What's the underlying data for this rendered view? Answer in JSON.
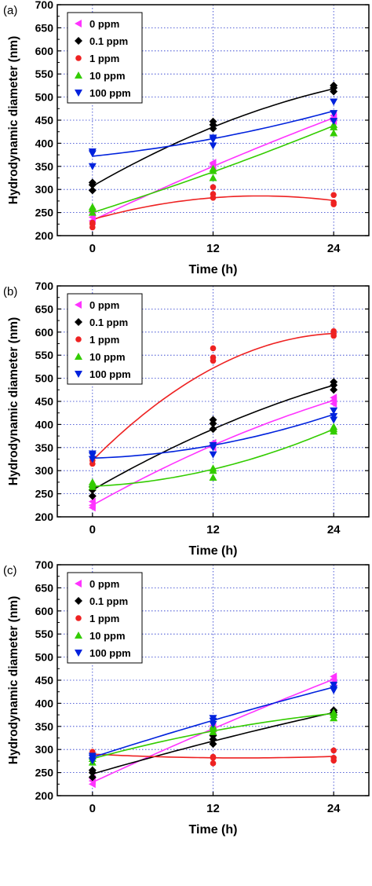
{
  "series_styles": [
    {
      "name": "0 ppm",
      "color": "#ff33ff",
      "marker": "triangle-left"
    },
    {
      "name": "0.1 ppm",
      "color": "#000000",
      "marker": "diamond"
    },
    {
      "name": "1 ppm",
      "color": "#ee2222",
      "marker": "circle"
    },
    {
      "name": "10 ppm",
      "color": "#33cc00",
      "marker": "triangle-up"
    },
    {
      "name": "100 ppm",
      "color": "#0022dd",
      "marker": "triangle-down"
    }
  ],
  "chart_data": [
    {
      "type": "scatter",
      "panel_label": "(a)",
      "xlabel": "Time (h)",
      "ylabel": "Hydrodynamic diameter (nm)",
      "x_ticks": [
        0,
        12,
        24
      ],
      "xlim": [
        -3.5,
        27.5
      ],
      "ylim": [
        200,
        700
      ],
      "y_ticks": [
        200,
        250,
        300,
        350,
        400,
        450,
        500,
        550,
        600,
        650,
        700
      ],
      "grid": true,
      "legend_position": "top-left",
      "series": [
        {
          "name": "0 ppm",
          "points": [
            [
              0,
              232
            ],
            [
              0,
              240
            ],
            [
              0,
              250
            ],
            [
              12,
              350
            ],
            [
              12,
              355
            ],
            [
              12,
              358
            ],
            [
              24,
              448
            ],
            [
              24,
              455
            ],
            [
              24,
              460
            ]
          ],
          "fit": [
            [
              0,
              233
            ],
            [
              12,
              350
            ],
            [
              24,
              455
            ]
          ]
        },
        {
          "name": "0.1 ppm",
          "points": [
            [
              0,
              298
            ],
            [
              0,
              310
            ],
            [
              0,
              315
            ],
            [
              12,
              432
            ],
            [
              12,
              440
            ],
            [
              12,
              447
            ],
            [
              24,
              512
            ],
            [
              24,
              520
            ],
            [
              24,
              525
            ]
          ],
          "fit": [
            [
              0,
              307
            ],
            [
              12,
              435
            ],
            [
              24,
              518
            ]
          ]
        },
        {
          "name": "1 ppm",
          "points": [
            [
              0,
              218
            ],
            [
              0,
              225
            ],
            [
              0,
              228
            ],
            [
              12,
              282
            ],
            [
              12,
              290
            ],
            [
              12,
              305
            ],
            [
              24,
              268
            ],
            [
              24,
              272
            ],
            [
              24,
              288
            ]
          ],
          "fit": [
            [
              0,
              235
            ],
            [
              12,
              282
            ],
            [
              24,
              276
            ]
          ]
        },
        {
          "name": "10 ppm",
          "points": [
            [
              0,
              250
            ],
            [
              0,
              258
            ],
            [
              0,
              262
            ],
            [
              12,
              325
            ],
            [
              12,
              340
            ],
            [
              12,
              345
            ],
            [
              24,
              422
            ],
            [
              24,
              435
            ],
            [
              24,
              440
            ]
          ],
          "fit": [
            [
              0,
              250
            ],
            [
              12,
              338
            ],
            [
              24,
              438
            ]
          ]
        },
        {
          "name": "100 ppm",
          "points": [
            [
              0,
              350
            ],
            [
              0,
              378
            ],
            [
              0,
              382
            ],
            [
              12,
              395
            ],
            [
              12,
              408
            ],
            [
              12,
              412
            ],
            [
              24,
              448
            ],
            [
              24,
              465
            ],
            [
              24,
              490
            ]
          ],
          "fit": [
            [
              0,
              372
            ],
            [
              12,
              410
            ],
            [
              24,
              470
            ]
          ]
        }
      ]
    },
    {
      "type": "scatter",
      "panel_label": "(b)",
      "xlabel": "Time (h)",
      "ylabel": "Hydrodynamic diameter (nm)",
      "x_ticks": [
        0,
        12,
        24
      ],
      "xlim": [
        -3.5,
        27.5
      ],
      "ylim": [
        200,
        700
      ],
      "y_ticks": [
        200,
        250,
        300,
        350,
        400,
        450,
        500,
        550,
        600,
        650,
        700
      ],
      "grid": true,
      "legend_position": "top-left",
      "series": [
        {
          "name": "0 ppm",
          "points": [
            [
              0,
              220
            ],
            [
              0,
              225
            ],
            [
              0,
              233
            ],
            [
              12,
              350
            ],
            [
              12,
              355
            ],
            [
              12,
              360
            ],
            [
              24,
              445
            ],
            [
              24,
              452
            ],
            [
              24,
              458
            ]
          ],
          "fit": [
            [
              0,
              225
            ],
            [
              12,
              355
            ],
            [
              24,
              452
            ]
          ]
        },
        {
          "name": "0.1 ppm",
          "points": [
            [
              0,
              245
            ],
            [
              0,
              258
            ],
            [
              0,
              265
            ],
            [
              12,
              390
            ],
            [
              12,
              402
            ],
            [
              12,
              410
            ],
            [
              24,
              475
            ],
            [
              24,
              485
            ],
            [
              24,
              492
            ]
          ],
          "fit": [
            [
              0,
              258
            ],
            [
              12,
              390
            ],
            [
              24,
              485
            ]
          ]
        },
        {
          "name": "1 ppm",
          "points": [
            [
              0,
              315
            ],
            [
              0,
              322
            ],
            [
              0,
              328
            ],
            [
              12,
              538
            ],
            [
              12,
              545
            ],
            [
              12,
              565
            ],
            [
              24,
              592
            ],
            [
              24,
              597
            ],
            [
              24,
              602
            ]
          ],
          "fit": [
            [
              0,
              322
            ],
            [
              12,
              522
            ],
            [
              24,
              597
            ]
          ]
        },
        {
          "name": "10 ppm",
          "points": [
            [
              0,
              265
            ],
            [
              0,
              270
            ],
            [
              0,
              275
            ],
            [
              12,
              285
            ],
            [
              12,
              300
            ],
            [
              12,
              305
            ],
            [
              24,
              385
            ],
            [
              24,
              390
            ],
            [
              24,
              395
            ]
          ],
          "fit": [
            [
              0,
              266
            ],
            [
              12,
              303
            ],
            [
              24,
              390
            ]
          ]
        },
        {
          "name": "100 ppm",
          "points": [
            [
              0,
              325
            ],
            [
              0,
              333
            ],
            [
              0,
              337
            ],
            [
              12,
              335
            ],
            [
              12,
              350
            ],
            [
              12,
              355
            ],
            [
              24,
              410
            ],
            [
              24,
              418
            ],
            [
              24,
              430
            ]
          ],
          "fit": [
            [
              0,
              327
            ],
            [
              12,
              355
            ],
            [
              24,
              422
            ]
          ]
        }
      ]
    },
    {
      "type": "scatter",
      "panel_label": "(c)",
      "xlabel": "Time (h)",
      "ylabel": "Hydrodynamic diameter (nm)",
      "x_ticks": [
        0,
        12,
        24
      ],
      "xlim": [
        -3.5,
        27.5
      ],
      "ylim": [
        200,
        700
      ],
      "y_ticks": [
        200,
        250,
        300,
        350,
        400,
        450,
        500,
        550,
        600,
        650,
        700
      ],
      "grid": true,
      "legend_position": "top-left",
      "series": [
        {
          "name": "0 ppm",
          "points": [
            [
              0,
              225
            ],
            [
              0,
              232
            ],
            [
              0,
              237
            ],
            [
              12,
              342
            ],
            [
              12,
              348
            ],
            [
              12,
              352
            ],
            [
              24,
              445
            ],
            [
              24,
              452
            ],
            [
              24,
              458
            ]
          ],
          "fit": [
            [
              0,
              229
            ],
            [
              12,
              345
            ],
            [
              24,
              452
            ]
          ]
        },
        {
          "name": "0.1 ppm",
          "points": [
            [
              0,
              240
            ],
            [
              0,
              250
            ],
            [
              0,
              255
            ],
            [
              12,
              312
            ],
            [
              12,
              322
            ],
            [
              12,
              330
            ],
            [
              24,
              375
            ],
            [
              24,
              380
            ],
            [
              24,
              385
            ]
          ],
          "fit": [
            [
              0,
              247
            ],
            [
              12,
              318
            ],
            [
              24,
              380
            ]
          ]
        },
        {
          "name": "1 ppm",
          "points": [
            [
              0,
              282
            ],
            [
              0,
              290
            ],
            [
              0,
              295
            ],
            [
              12,
              270
            ],
            [
              12,
              282
            ],
            [
              12,
              284
            ],
            [
              24,
              276
            ],
            [
              24,
              282
            ],
            [
              24,
              298
            ]
          ],
          "fit": [
            [
              0,
              290
            ],
            [
              12,
              282
            ],
            [
              24,
              285
            ]
          ]
        },
        {
          "name": "10 ppm",
          "points": [
            [
              0,
              272
            ],
            [
              0,
              280
            ],
            [
              0,
              285
            ],
            [
              12,
              338
            ],
            [
              12,
              345
            ],
            [
              12,
              350
            ],
            [
              24,
              368
            ],
            [
              24,
              375
            ],
            [
              24,
              380
            ]
          ],
          "fit": [
            [
              0,
              280
            ],
            [
              12,
              340
            ],
            [
              24,
              378
            ]
          ]
        },
        {
          "name": "100 ppm",
          "points": [
            [
              0,
              276
            ],
            [
              0,
              282
            ],
            [
              0,
              286
            ],
            [
              12,
              355
            ],
            [
              12,
              362
            ],
            [
              12,
              368
            ],
            [
              24,
              428
            ],
            [
              24,
              432
            ],
            [
              24,
              440
            ]
          ],
          "fit": [
            [
              0,
              283
            ],
            [
              12,
              363
            ],
            [
              24,
              435
            ]
          ]
        }
      ]
    }
  ]
}
